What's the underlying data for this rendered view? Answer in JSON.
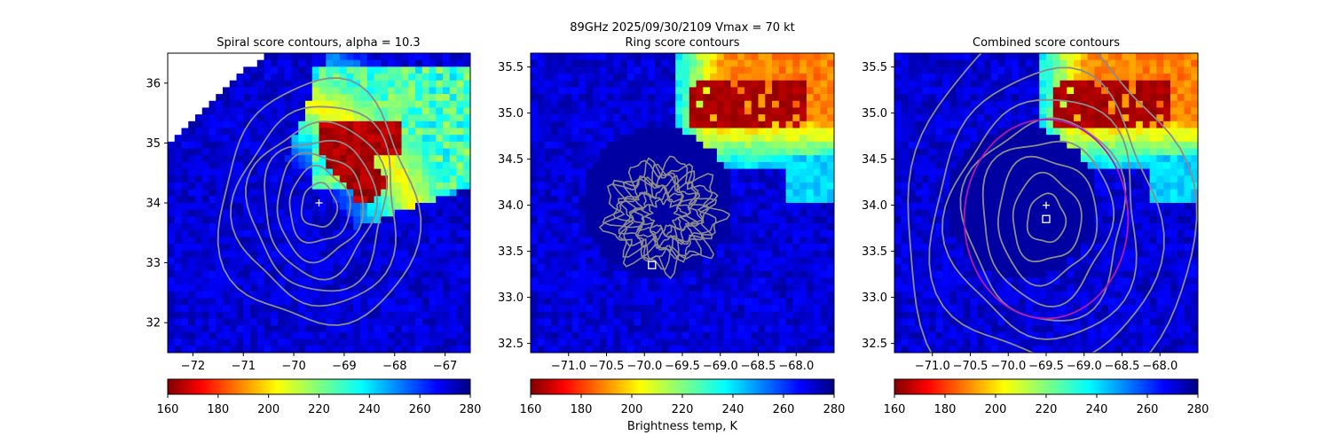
{
  "figure": {
    "suptitle": "89GHz  2025/09/30/2109    Vmax = 70 kt",
    "colorbar_label": "Brightness temp, K"
  },
  "colors": {
    "contour": "#8c8c8c",
    "ring_fit": "#b01ab0",
    "center_marker": "#ffffff"
  },
  "chart_data": [
    {
      "type": "heatmap",
      "title": "Spiral score contours, alpha = 10.3",
      "xlim": [
        -72.5,
        -66.5
      ],
      "ylim": [
        31.5,
        36.5
      ],
      "xticks": [
        -72,
        -71,
        -70,
        -69,
        -68,
        -67
      ],
      "yticks": [
        32,
        33,
        34,
        35,
        36
      ],
      "xtick_labels": [
        "−72",
        "−71",
        "−70",
        "−69",
        "−68",
        "−67"
      ],
      "ytick_labels": [
        "32",
        "33",
        "34",
        "35",
        "36"
      ],
      "colorbar": {
        "min": 160,
        "max": 280,
        "ticks": [
          160,
          180,
          200,
          220,
          240,
          260,
          280
        ],
        "colormap": "jet_r"
      },
      "markers": [
        {
          "symbol": "plus",
          "x": -69.5,
          "y": 34.0
        }
      ],
      "contours": {
        "type": "concentric",
        "center": [
          -69.5,
          33.95
        ],
        "radii_deg": [
          0.35,
          0.6,
          0.85,
          1.1,
          1.35,
          1.6,
          1.95
        ]
      },
      "cold_cloud": {
        "region": "northeast arc",
        "min_temp": 160
      }
    },
    {
      "type": "heatmap",
      "title": "Ring score contours",
      "xlim": [
        -71.5,
        -67.5
      ],
      "ylim": [
        32.4,
        35.65
      ],
      "xticks": [
        -71.0,
        -70.5,
        -70.0,
        -69.5,
        -69.0,
        -68.5,
        -68.0
      ],
      "yticks": [
        32.5,
        33.0,
        33.5,
        34.0,
        34.5,
        35.0,
        35.5
      ],
      "xtick_labels": [
        "−71.0",
        "−70.5",
        "−70.0",
        "−69.5",
        "−69.0",
        "−68.5",
        "−68.0"
      ],
      "ytick_labels": [
        "32.5",
        "33.0",
        "33.5",
        "34.0",
        "34.5",
        "35.0",
        "35.5"
      ],
      "colorbar": {
        "min": 160,
        "max": 280,
        "ticks": [
          160,
          180,
          200,
          220,
          240,
          260,
          280
        ],
        "colormap": "jet_r"
      },
      "markers": [
        {
          "symbol": "square",
          "x": -69.9,
          "y": 33.35
        }
      ],
      "contours": {
        "type": "noisy-disk",
        "center": [
          -69.75,
          33.9
        ],
        "radius_deg": 0.75
      }
    },
    {
      "type": "heatmap",
      "title": "Combined score contours",
      "xlim": [
        -71.5,
        -67.5
      ],
      "ylim": [
        32.4,
        35.65
      ],
      "xticks": [
        -71.0,
        -70.5,
        -70.0,
        -69.5,
        -69.0,
        -68.5,
        -68.0
      ],
      "yticks": [
        32.5,
        33.0,
        33.5,
        34.0,
        34.5,
        35.0,
        35.5
      ],
      "xtick_labels": [
        "−71.0",
        "−70.5",
        "−70.0",
        "−69.5",
        "−69.0",
        "−68.5",
        "−68.0"
      ],
      "ytick_labels": [
        "32.5",
        "33.0",
        "33.5",
        "34.0",
        "34.5",
        "35.0",
        "35.5"
      ],
      "colorbar": {
        "min": 160,
        "max": 280,
        "ticks": [
          160,
          180,
          200,
          220,
          240,
          260,
          280
        ],
        "colormap": "jet_r"
      },
      "markers": [
        {
          "symbol": "plus",
          "x": -69.5,
          "y": 34.0
        },
        {
          "symbol": "square",
          "x": -69.5,
          "y": 33.85
        }
      ],
      "ring_fit": {
        "center": [
          -69.5,
          33.85
        ],
        "radius_deg": 1.08
      },
      "contours": {
        "type": "concentric",
        "center": [
          -69.5,
          33.85
        ],
        "radii_deg": [
          0.25,
          0.45,
          0.65,
          0.85,
          1.05,
          1.25,
          1.5,
          1.9
        ]
      }
    }
  ]
}
